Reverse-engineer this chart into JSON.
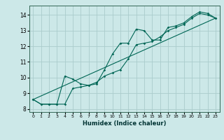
{
  "title": "",
  "xlabel": "Humidex (Indice chaleur)",
  "background_color": "#cce8e8",
  "grid_color": "#aacccc",
  "line_color": "#006655",
  "xlim": [
    -0.5,
    23.5
  ],
  "ylim": [
    7.8,
    14.6
  ],
  "xticks": [
    0,
    1,
    2,
    3,
    4,
    5,
    6,
    7,
    8,
    9,
    10,
    11,
    12,
    13,
    14,
    15,
    16,
    17,
    18,
    19,
    20,
    21,
    22,
    23
  ],
  "yticks": [
    8,
    9,
    10,
    11,
    12,
    13,
    14
  ],
  "line1_x": [
    0,
    1,
    2,
    3,
    4,
    5,
    6,
    7,
    8,
    9,
    10,
    11,
    12,
    13,
    14,
    15,
    16,
    17,
    18,
    19,
    20,
    21,
    22,
    23
  ],
  "line1_y": [
    8.6,
    8.3,
    8.3,
    8.3,
    10.1,
    9.9,
    9.6,
    9.5,
    9.6,
    10.5,
    11.5,
    12.2,
    12.2,
    13.1,
    13.0,
    12.4,
    12.4,
    13.2,
    13.3,
    13.5,
    13.9,
    14.2,
    14.1,
    13.8
  ],
  "line2_x": [
    0,
    1,
    2,
    3,
    4,
    5,
    6,
    7,
    8,
    9,
    10,
    11,
    12,
    13,
    14,
    15,
    16,
    17,
    18,
    19,
    20,
    21,
    22,
    23
  ],
  "line2_y": [
    8.6,
    8.3,
    8.3,
    8.3,
    8.3,
    9.3,
    9.4,
    9.5,
    9.7,
    10.1,
    10.3,
    10.5,
    11.2,
    12.1,
    12.2,
    12.3,
    12.6,
    13.0,
    13.2,
    13.4,
    13.8,
    14.1,
    14.0,
    13.8
  ],
  "line3_x": [
    0,
    23
  ],
  "line3_y": [
    8.6,
    13.8
  ]
}
